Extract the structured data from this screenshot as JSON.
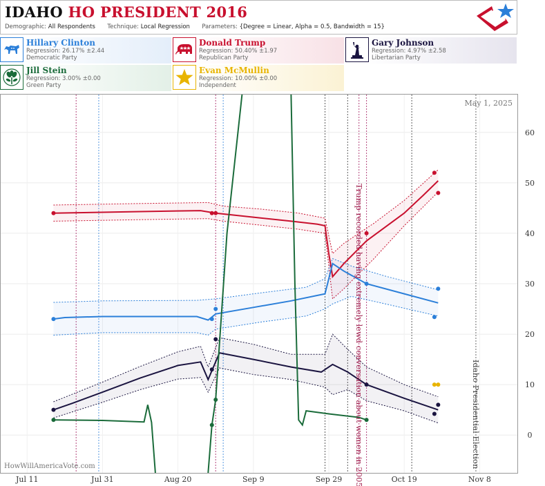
{
  "header": {
    "title_state": "IDAHO",
    "title_rest": "HO PRESIDENT 2016",
    "demographic_label": "Demographic:",
    "demographic_value": "All Respondents",
    "technique_label": "Technique:",
    "technique_value": "Local Regression",
    "parameters_label": "Parameters:",
    "parameters_value": "{Degree = Linear, Alpha = 0.5, Bandwidth = 15}"
  },
  "candidates": [
    {
      "name": "Hillary Clinton",
      "regression": "Regression: 26.17% ±2.44",
      "party": "Democratic Party",
      "color": "#2b7fd9",
      "icon": "donkey-icon"
    },
    {
      "name": "Donald Trump",
      "regression": "Regression: 50.40% ±1.97",
      "party": "Republican Party",
      "color": "#c8102e",
      "icon": "elephant-icon"
    },
    {
      "name": "Gary Johnson",
      "regression": "Regression: 4.97% ±2.58",
      "party": "Libertarian Party",
      "color": "#1a1440",
      "icon": "liberty-icon"
    },
    {
      "name": "Jill Stein",
      "regression": "Regression: 3.00% ±0.00",
      "party": "Green Party",
      "color": "#1a6b3a",
      "icon": "flower-icon"
    },
    {
      "name": "Evan McMullin",
      "regression": "Regression: 10.00% ±0.00",
      "party": "Independent",
      "color": "#e8b400",
      "icon": "star-icon"
    }
  ],
  "chart_data": {
    "type": "line",
    "date_label": "May 1, 2025",
    "watermark": "HowWillAmericaVote.com",
    "x_ticks": [
      "Jul 11",
      "Jul 31",
      "Aug 20",
      "Sep 9",
      "Sep 29",
      "Oct 19",
      "Nov 8"
    ],
    "x_tick_days": [
      0,
      20,
      40,
      60,
      80,
      100,
      120
    ],
    "y_ticks": [
      0,
      10,
      20,
      30,
      40,
      50,
      60
    ],
    "ylim": [
      -7.5,
      67.5
    ],
    "xlim": [
      -7,
      130
    ],
    "annotations": [
      {
        "text": "Trump recorded having extremely lewd conversation about women in 2005",
        "day": 87,
        "color": "#9e1b4a"
      },
      {
        "text": "Idaho Presidential Election",
        "day": 119,
        "color": "#444"
      }
    ],
    "event_lines": [
      {
        "day": 13,
        "color": "#a0145a"
      },
      {
        "day": 19,
        "color": "#2b7fd9"
      },
      {
        "day": 50,
        "color": "#a0145a"
      },
      {
        "day": 52,
        "color": "#2b7fd9"
      },
      {
        "day": 79,
        "color": "#333"
      },
      {
        "day": 85,
        "color": "#333"
      },
      {
        "day": 88,
        "color": "#a0145a"
      },
      {
        "day": 90,
        "color": "#a0145a"
      },
      {
        "day": 102,
        "color": "#333"
      },
      {
        "day": 119,
        "color": "#444"
      }
    ],
    "series": [
      {
        "name": "Donald Trump",
        "color": "#c8102e",
        "line": [
          [
            7,
            44
          ],
          [
            30,
            44.3
          ],
          [
            46,
            44.5
          ],
          [
            50,
            44
          ],
          [
            60,
            43.2
          ],
          [
            70,
            42.4
          ],
          [
            77,
            41.8
          ],
          [
            79,
            41.5
          ],
          [
            80,
            36
          ],
          [
            81,
            31.4
          ],
          [
            84,
            34
          ],
          [
            90,
            38.5
          ],
          [
            100,
            44
          ],
          [
            105,
            47.5
          ],
          [
            109,
            50.4
          ]
        ],
        "upper": [
          [
            7,
            45.6
          ],
          [
            30,
            45.9
          ],
          [
            48,
            46.1
          ],
          [
            52,
            45.4
          ],
          [
            62,
            44.8
          ],
          [
            72,
            44
          ],
          [
            79,
            43
          ],
          [
            81,
            36
          ],
          [
            84,
            38
          ],
          [
            92,
            42
          ],
          [
            100,
            46.5
          ],
          [
            109,
            52.6
          ]
        ],
        "lower": [
          [
            7,
            42.4
          ],
          [
            30,
            42.7
          ],
          [
            48,
            42.9
          ],
          [
            52,
            42.4
          ],
          [
            62,
            41.6
          ],
          [
            72,
            40.8
          ],
          [
            79,
            40
          ],
          [
            81,
            27
          ],
          [
            84,
            29
          ],
          [
            92,
            35
          ],
          [
            100,
            41.5
          ],
          [
            109,
            48.2
          ]
        ],
        "points": [
          [
            7,
            44
          ],
          [
            49,
            44
          ],
          [
            50,
            44
          ],
          [
            90,
            40
          ],
          [
            108,
            52
          ],
          [
            109,
            48
          ]
        ]
      },
      {
        "name": "Hillary Clinton",
        "color": "#2b7fd9",
        "line": [
          [
            7,
            23
          ],
          [
            10,
            23.3
          ],
          [
            20,
            23.5
          ],
          [
            30,
            23.5
          ],
          [
            45,
            23.5
          ],
          [
            48,
            22.8
          ],
          [
            50,
            24
          ],
          [
            60,
            25.3
          ],
          [
            70,
            26.6
          ],
          [
            79,
            28
          ],
          [
            80,
            31
          ],
          [
            81,
            34
          ],
          [
            84,
            32.5
          ],
          [
            90,
            30
          ],
          [
            100,
            28
          ],
          [
            109,
            26.2
          ]
        ],
        "upper": [
          [
            7,
            26.3
          ],
          [
            20,
            26.6
          ],
          [
            45,
            26.7
          ],
          [
            50,
            27
          ],
          [
            62,
            28.2
          ],
          [
            74,
            29.3
          ],
          [
            79,
            31
          ],
          [
            81,
            35
          ],
          [
            86,
            33.5
          ],
          [
            95,
            31.5
          ],
          [
            109,
            28.8
          ]
        ],
        "lower": [
          [
            7,
            19.8
          ],
          [
            20,
            20.3
          ],
          [
            45,
            20.3
          ],
          [
            48,
            19.8
          ],
          [
            50,
            21
          ],
          [
            62,
            22.4
          ],
          [
            74,
            23.6
          ],
          [
            79,
            25
          ],
          [
            81,
            26
          ],
          [
            86,
            27.5
          ],
          [
            95,
            26
          ],
          [
            109,
            23.6
          ]
        ],
        "points": [
          [
            7,
            23
          ],
          [
            49,
            23
          ],
          [
            50,
            25
          ],
          [
            90,
            30
          ],
          [
            108,
            23.4
          ],
          [
            109,
            29
          ]
        ]
      },
      {
        "name": "Gary Johnson",
        "color": "#1a1440",
        "line": [
          [
            7,
            5
          ],
          [
            12,
            6.3
          ],
          [
            20,
            8.5
          ],
          [
            30,
            11.3
          ],
          [
            40,
            13.8
          ],
          [
            46,
            14.5
          ],
          [
            48,
            11
          ],
          [
            51,
            16.3
          ],
          [
            60,
            15
          ],
          [
            70,
            13.5
          ],
          [
            78,
            12.5
          ],
          [
            81,
            14
          ],
          [
            85,
            12.5
          ],
          [
            90,
            10
          ],
          [
            100,
            7.3
          ],
          [
            109,
            5
          ]
        ],
        "upper": [
          [
            7,
            6.6
          ],
          [
            20,
            10.5
          ],
          [
            30,
            13.6
          ],
          [
            40,
            16.5
          ],
          [
            46,
            17.6
          ],
          [
            48,
            13.5
          ],
          [
            51,
            19.3
          ],
          [
            60,
            18
          ],
          [
            70,
            16
          ],
          [
            79,
            16
          ],
          [
            81,
            20
          ],
          [
            85,
            17
          ],
          [
            90,
            13.5
          ],
          [
            100,
            10
          ],
          [
            109,
            7.6
          ]
        ],
        "lower": [
          [
            7,
            3.4
          ],
          [
            20,
            6.5
          ],
          [
            30,
            9
          ],
          [
            40,
            11.1
          ],
          [
            46,
            11.4
          ],
          [
            48,
            8.5
          ],
          [
            51,
            13.3
          ],
          [
            60,
            12
          ],
          [
            70,
            11
          ],
          [
            79,
            9.5
          ],
          [
            81,
            8
          ],
          [
            85,
            9
          ],
          [
            90,
            6.8
          ],
          [
            100,
            4.8
          ],
          [
            109,
            2.4
          ]
        ],
        "points": [
          [
            7,
            5
          ],
          [
            49,
            13
          ],
          [
            50,
            19
          ],
          [
            90,
            10
          ],
          [
            108,
            4.2
          ],
          [
            109,
            6
          ]
        ]
      },
      {
        "name": "Jill Stein",
        "color": "#1a6b3a",
        "line": [
          [
            7,
            3
          ],
          [
            20,
            2.9
          ],
          [
            31,
            2.6
          ],
          [
            32,
            6
          ],
          [
            33,
            2.5
          ],
          [
            34,
            -7.5
          ],
          [
            null,
            null
          ],
          [
            48,
            -7.5
          ],
          [
            49,
            2
          ],
          [
            50,
            7
          ],
          [
            53,
            40
          ],
          [
            57,
            67.5
          ],
          [
            null,
            null
          ],
          [
            70,
            67.5
          ],
          [
            71,
            30
          ],
          [
            72,
            3
          ],
          [
            73,
            2
          ],
          [
            74,
            4.8
          ],
          [
            80,
            4.2
          ],
          [
            88,
            3.5
          ],
          [
            90,
            3
          ]
        ],
        "points": [
          [
            7,
            3
          ],
          [
            49,
            2
          ],
          [
            50,
            7
          ],
          [
            90,
            3
          ]
        ]
      },
      {
        "name": "Evan McMullin",
        "color": "#e8b400",
        "points": [
          [
            108,
            10
          ],
          [
            109,
            10
          ]
        ]
      }
    ]
  }
}
